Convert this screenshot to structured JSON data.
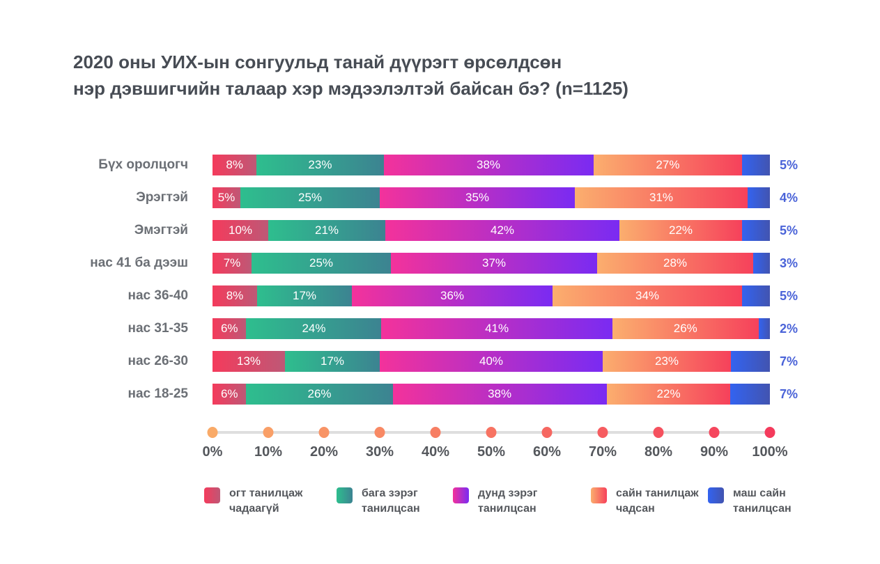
{
  "header": {
    "title_line1": "2020 оны УИХ-ын сонгуульд танай дүүрэгт өрсөлдсөн",
    "title_line2": "нэр дэвшигчийн талаар хэр мэдээлэлтэй байсан бэ? (n=1125)"
  },
  "colors": {
    "title_text": "#474C54",
    "row_label_text": "#6B6F75",
    "end_label_text": "#4A63D8",
    "tick_label_text": "#54575C",
    "axis_line": "#DEDEDE",
    "bar_value_text": "#FFFFFF"
  },
  "chart_data": {
    "type": "bar",
    "stacked": true,
    "orientation": "horizontal",
    "title": "2020 оны УИХ-ын сонгуульд танай дүүрэгт өрсөлдсөн нэр дэвшигчийн талаар хэр мэдээлэлтэй байсан бэ? (n=1125)",
    "categories": [
      "Бүх оролцогч",
      "Эрэгтэй",
      "Эмэгтэй",
      "нас 41 ба дээш",
      "нас 36-40",
      "нас 31-35",
      "нас 26-30",
      "нас 18-25"
    ],
    "series": [
      {
        "name": "огт танилцаж чадаагүй",
        "name_lines": [
          "огт танилцаж",
          "чадаагүй"
        ],
        "color_start": "#F43B5C",
        "color_end": "#BE5876",
        "values": [
          8,
          5,
          10,
          7,
          8,
          6,
          13,
          6
        ]
      },
      {
        "name": "бага зэрэг танилцсан",
        "name_lines": [
          "бага зэрэг",
          "танилцсан"
        ],
        "color_start": "#2EBE8E",
        "color_end": "#3C8391",
        "values": [
          23,
          25,
          21,
          25,
          17,
          24,
          17,
          26
        ]
      },
      {
        "name": "дунд зэрэг танилцсан",
        "name_lines": [
          "дунд зэрэг",
          "танилцсан"
        ],
        "color_start": "#F3329B",
        "color_end": "#7A2BF2",
        "values": [
          38,
          35,
          42,
          37,
          36,
          41,
          40,
          38
        ]
      },
      {
        "name": "сайн танилцаж чадсан",
        "name_lines": [
          "сайн танилцаж",
          "чадсан"
        ],
        "color_start": "#FBAE6E",
        "color_end": "#F6415B",
        "values": [
          27,
          31,
          22,
          28,
          34,
          26,
          23,
          22
        ]
      },
      {
        "name": "маш сайн танилцсан",
        "name_lines": [
          "маш сайн",
          "танилцсан"
        ],
        "color_start": "#3363F0",
        "color_end": "#4254B0",
        "values": [
          5,
          4,
          5,
          3,
          5,
          2,
          7,
          7
        ]
      }
    ],
    "value_label_format": "{value}%",
    "outside_label_series_index": 4,
    "x_axis": {
      "range": [
        0,
        100
      ],
      "ticks": [
        "0%",
        "10%",
        "20%",
        "30%",
        "40%",
        "50%",
        "60%",
        "70%",
        "80%",
        "90%",
        "100%"
      ],
      "dot_color_start": "#F9AA68",
      "dot_color_end": "#F43B5C"
    },
    "legend_position": "bottom"
  }
}
